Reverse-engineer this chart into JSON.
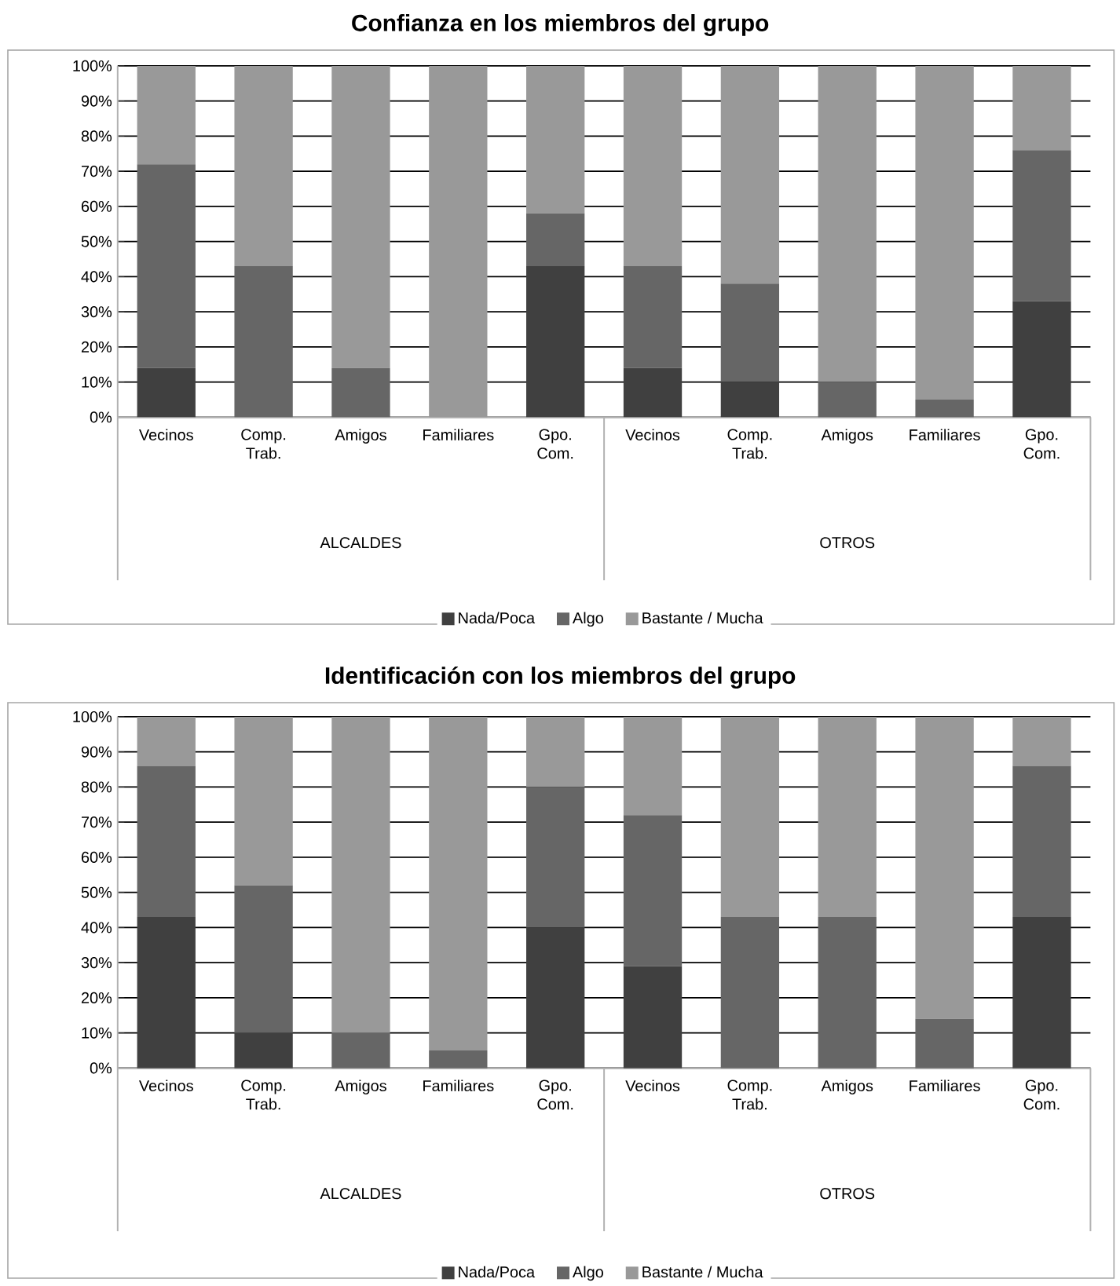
{
  "chart_data": [
    {
      "type": "bar",
      "stacked": true,
      "title": "Confianza en los miembros del grupo",
      "categories": [
        "Vecinos",
        "Comp. Trab.",
        "Amigos",
        "Familiares",
        "Gpo. Com.",
        "Vecinos",
        "Comp. Trab.",
        "Amigos",
        "Familiares",
        "Gpo. Com."
      ],
      "series": [
        {
          "name": "Nada/Poca",
          "color": "#404040",
          "values": [
            14,
            0,
            0,
            0,
            43,
            14,
            10,
            0,
            0,
            33
          ]
        },
        {
          "name": "Algo",
          "color": "#666666",
          "values": [
            58,
            43,
            14,
            0,
            15,
            29,
            28,
            10,
            5,
            43
          ]
        },
        {
          "name": "Bastante / Mucha",
          "color": "#999999",
          "values": [
            28,
            57,
            86,
            100,
            42,
            57,
            62,
            90,
            95,
            24
          ]
        }
      ],
      "ylim": [
        0,
        100
      ],
      "yticks": [
        {
          "value": 0,
          "label": "0%"
        },
        {
          "value": 10,
          "label": "10%"
        },
        {
          "value": 20,
          "label": "20%"
        },
        {
          "value": 30,
          "label": "30%"
        },
        {
          "value": 40,
          "label": "40%"
        },
        {
          "value": 50,
          "label": "50%"
        },
        {
          "value": 60,
          "label": "60%"
        },
        {
          "value": 70,
          "label": "70%"
        },
        {
          "value": 80,
          "label": "80%"
        },
        {
          "value": 90,
          "label": "90%"
        },
        {
          "value": 100,
          "label": "100%"
        }
      ],
      "grid": "y",
      "legend": "bottom",
      "annotations": [
        "ALCALDES",
        "OTROS"
      ]
    },
    {
      "type": "bar",
      "stacked": true,
      "title": "Identificación con los miembros del grupo",
      "categories": [
        "Vecinos",
        "Comp. Trab.",
        "Amigos",
        "Familiares",
        "Gpo. Com.",
        "Vecinos",
        "Comp. Trab.",
        "Amigos",
        "Familiares",
        "Gpo. Com."
      ],
      "series": [
        {
          "name": "Nada/Poca",
          "color": "#404040",
          "values": [
            43,
            10,
            0,
            0,
            40,
            29,
            0,
            0,
            0,
            43
          ]
        },
        {
          "name": "Algo",
          "color": "#666666",
          "values": [
            43,
            42,
            10,
            5,
            40,
            43,
            43,
            43,
            14,
            43
          ]
        },
        {
          "name": "Bastante / Mucha",
          "color": "#999999",
          "values": [
            14,
            48,
            90,
            95,
            20,
            28,
            57,
            57,
            86,
            14
          ]
        }
      ],
      "ylim": [
        0,
        100
      ],
      "yticks": [
        {
          "value": 0,
          "label": "0%"
        },
        {
          "value": 10,
          "label": "10%"
        },
        {
          "value": 20,
          "label": "20%"
        },
        {
          "value": 30,
          "label": "30%"
        },
        {
          "value": 40,
          "label": "40%"
        },
        {
          "value": 50,
          "label": "50%"
        },
        {
          "value": 60,
          "label": "60%"
        },
        {
          "value": 70,
          "label": "70%"
        },
        {
          "value": 80,
          "label": "80%"
        },
        {
          "value": 90,
          "label": "90%"
        },
        {
          "value": 100,
          "label": "100%"
        }
      ],
      "grid": "y",
      "legend": "bottom",
      "annotations": [
        "ALCALDES",
        "OTROS"
      ]
    }
  ]
}
